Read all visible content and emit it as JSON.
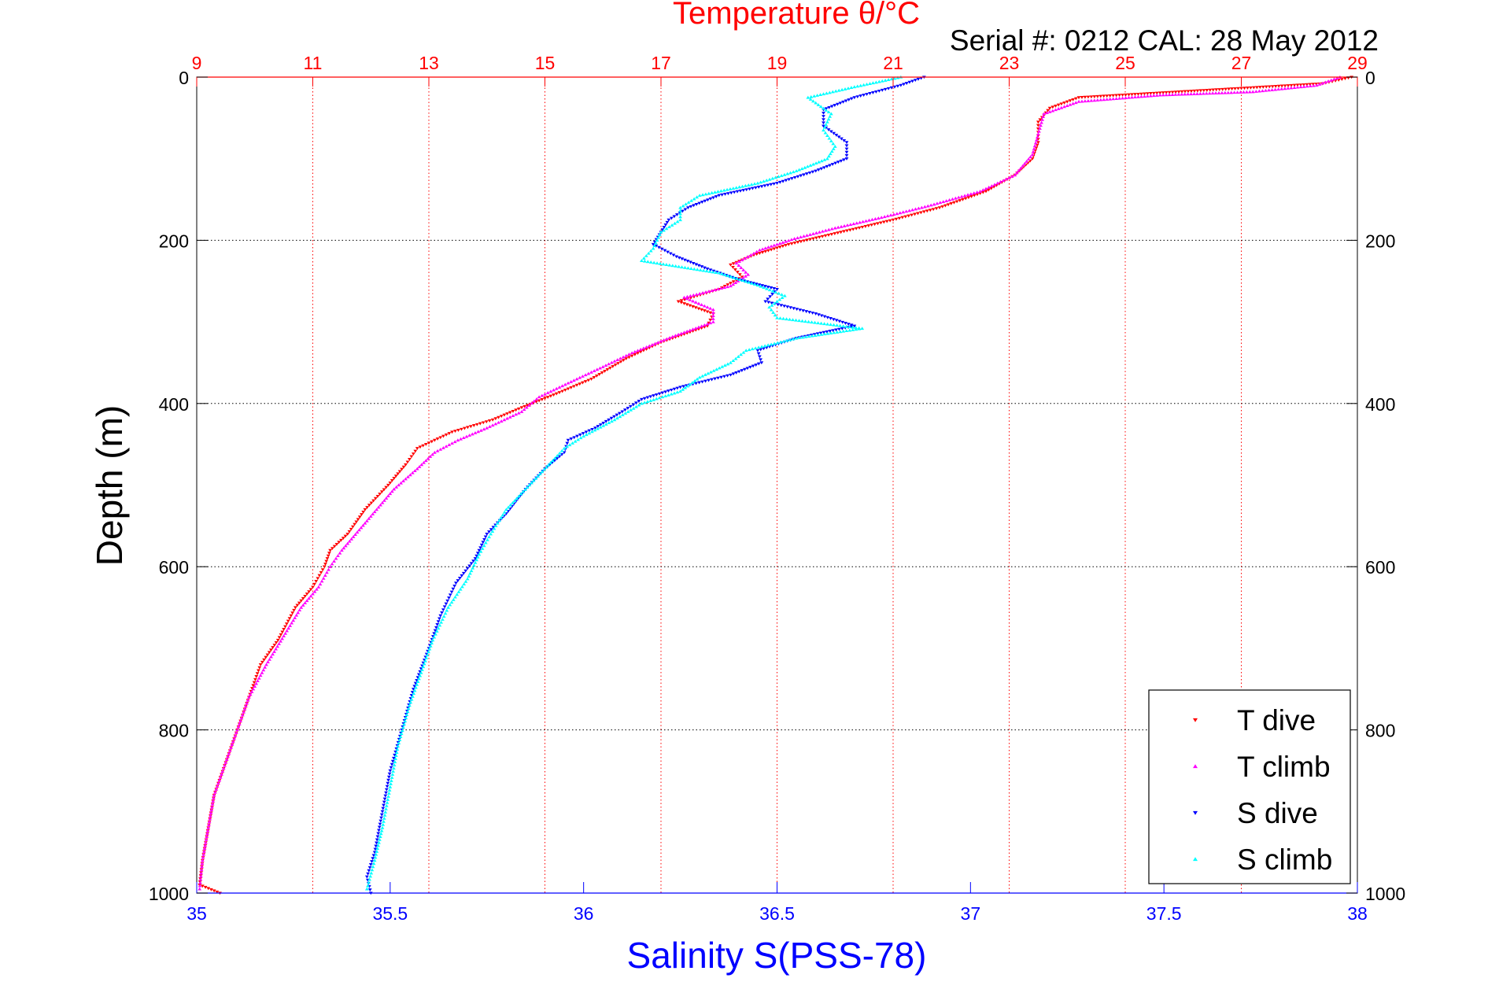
{
  "chart_data": {
    "type": "scatter",
    "title": "Temperature θ/°C",
    "subtitle": "Serial #: 0212  CAL: 28 May 2012",
    "xlabel": "Salinity S(PSS-78)",
    "ylabel": "Depth (m)",
    "x_bottom": {
      "label": "Salinity S(PSS-78)",
      "range": [
        35,
        38
      ],
      "ticks": [
        35,
        35.5,
        36,
        36.5,
        37,
        37.5,
        38
      ],
      "color": "#0000ff"
    },
    "x_top": {
      "label": "Temperature θ/°C",
      "range": [
        9,
        29
      ],
      "ticks": [
        9,
        11,
        13,
        15,
        17,
        19,
        21,
        23,
        25,
        27,
        29
      ],
      "color": "#ff0000"
    },
    "y": {
      "label": "Depth (m)",
      "range": [
        0,
        1000
      ],
      "reversed": true,
      "ticks": [
        0,
        200,
        400,
        600,
        800,
        1000
      ]
    },
    "grid": true,
    "legend_position": "bottom-right",
    "series": [
      {
        "name": "T dive",
        "axis": "temperature",
        "color": "#ff0000",
        "marker": "triangle-down",
        "points": [
          [
            28.9,
            0
          ],
          [
            28.4,
            8
          ],
          [
            24.2,
            25
          ],
          [
            23.7,
            38
          ],
          [
            23.5,
            55
          ],
          [
            23.5,
            80
          ],
          [
            23.4,
            100
          ],
          [
            23.1,
            120
          ],
          [
            22.6,
            140
          ],
          [
            21.8,
            160
          ],
          [
            21.0,
            175
          ],
          [
            20.1,
            190
          ],
          [
            19.2,
            205
          ],
          [
            18.6,
            218
          ],
          [
            18.2,
            230
          ],
          [
            18.4,
            245
          ],
          [
            18.0,
            260
          ],
          [
            17.3,
            275
          ],
          [
            17.9,
            290
          ],
          [
            17.8,
            305
          ],
          [
            17.0,
            325
          ],
          [
            16.4,
            345
          ],
          [
            15.8,
            370
          ],
          [
            15.2,
            388
          ],
          [
            14.6,
            405
          ],
          [
            14.1,
            420
          ],
          [
            13.4,
            435
          ],
          [
            12.8,
            455
          ],
          [
            12.6,
            475
          ],
          [
            12.3,
            500
          ],
          [
            11.9,
            530
          ],
          [
            11.6,
            560
          ],
          [
            11.3,
            580
          ],
          [
            11.2,
            600
          ],
          [
            11.0,
            625
          ],
          [
            10.7,
            650
          ],
          [
            10.4,
            690
          ],
          [
            10.1,
            720
          ],
          [
            9.9,
            760
          ],
          [
            9.7,
            800
          ],
          [
            9.5,
            840
          ],
          [
            9.3,
            880
          ],
          [
            9.2,
            920
          ],
          [
            9.1,
            960
          ],
          [
            9.05,
            990
          ],
          [
            9.4,
            1000
          ]
        ]
      },
      {
        "name": "T climb",
        "axis": "temperature",
        "color": "#ff00ff",
        "marker": "triangle-up",
        "points": [
          [
            28.7,
            0
          ],
          [
            28.3,
            10
          ],
          [
            27.2,
            18
          ],
          [
            25.6,
            22
          ],
          [
            24.2,
            30
          ],
          [
            23.6,
            45
          ],
          [
            23.5,
            70
          ],
          [
            23.4,
            95
          ],
          [
            23.1,
            120
          ],
          [
            22.5,
            140
          ],
          [
            21.6,
            158
          ],
          [
            20.8,
            172
          ],
          [
            20.0,
            185
          ],
          [
            19.3,
            198
          ],
          [
            18.7,
            212
          ],
          [
            18.3,
            228
          ],
          [
            18.5,
            242
          ],
          [
            18.2,
            256
          ],
          [
            17.4,
            270
          ],
          [
            17.9,
            285
          ],
          [
            17.9,
            300
          ],
          [
            17.2,
            318
          ],
          [
            16.5,
            338
          ],
          [
            16.0,
            355
          ],
          [
            15.4,
            375
          ],
          [
            14.9,
            392
          ],
          [
            14.6,
            410
          ],
          [
            14.0,
            430
          ],
          [
            13.5,
            445
          ],
          [
            13.1,
            460
          ],
          [
            12.8,
            480
          ],
          [
            12.4,
            505
          ],
          [
            12.1,
            530
          ],
          [
            11.8,
            555
          ],
          [
            11.5,
            580
          ],
          [
            11.3,
            600
          ],
          [
            11.1,
            625
          ],
          [
            10.8,
            650
          ],
          [
            10.5,
            685
          ],
          [
            10.2,
            720
          ],
          [
            9.9,
            760
          ],
          [
            9.7,
            800
          ],
          [
            9.5,
            840
          ],
          [
            9.3,
            880
          ],
          [
            9.2,
            920
          ],
          [
            9.1,
            960
          ],
          [
            9.05,
            995
          ]
        ]
      },
      {
        "name": "S dive",
        "axis": "salinity",
        "color": "#0000ff",
        "marker": "triangle-down",
        "points": [
          [
            36.88,
            0
          ],
          [
            36.82,
            10
          ],
          [
            36.7,
            25
          ],
          [
            36.62,
            40
          ],
          [
            36.62,
            60
          ],
          [
            36.68,
            80
          ],
          [
            36.68,
            100
          ],
          [
            36.6,
            115
          ],
          [
            36.5,
            130
          ],
          [
            36.35,
            145
          ],
          [
            36.27,
            160
          ],
          [
            36.22,
            175
          ],
          [
            36.2,
            190
          ],
          [
            36.18,
            205
          ],
          [
            36.24,
            220
          ],
          [
            36.32,
            235
          ],
          [
            36.4,
            248
          ],
          [
            36.5,
            260
          ],
          [
            36.47,
            275
          ],
          [
            36.6,
            290
          ],
          [
            36.7,
            305
          ],
          [
            36.55,
            320
          ],
          [
            36.45,
            335
          ],
          [
            36.46,
            350
          ],
          [
            36.38,
            365
          ],
          [
            36.25,
            380
          ],
          [
            36.15,
            395
          ],
          [
            36.1,
            410
          ],
          [
            36.03,
            430
          ],
          [
            35.96,
            445
          ],
          [
            35.95,
            460
          ],
          [
            35.9,
            480
          ],
          [
            35.85,
            505
          ],
          [
            35.8,
            535
          ],
          [
            35.75,
            560
          ],
          [
            35.72,
            590
          ],
          [
            35.67,
            620
          ],
          [
            35.63,
            660
          ],
          [
            35.6,
            700
          ],
          [
            35.56,
            750
          ],
          [
            35.53,
            800
          ],
          [
            35.5,
            850
          ],
          [
            35.48,
            900
          ],
          [
            35.46,
            950
          ],
          [
            35.44,
            980
          ],
          [
            35.45,
            1000
          ]
        ]
      },
      {
        "name": "S climb",
        "axis": "salinity",
        "color": "#00ffff",
        "marker": "triangle-up",
        "points": [
          [
            36.82,
            0
          ],
          [
            36.7,
            12
          ],
          [
            36.58,
            25
          ],
          [
            36.64,
            45
          ],
          [
            36.62,
            65
          ],
          [
            36.65,
            85
          ],
          [
            36.63,
            100
          ],
          [
            36.55,
            115
          ],
          [
            36.45,
            130
          ],
          [
            36.3,
            145
          ],
          [
            36.25,
            160
          ],
          [
            36.25,
            175
          ],
          [
            36.2,
            190
          ],
          [
            36.18,
            210
          ],
          [
            36.15,
            225
          ],
          [
            36.35,
            240
          ],
          [
            36.45,
            255
          ],
          [
            36.52,
            268
          ],
          [
            36.48,
            282
          ],
          [
            36.5,
            295
          ],
          [
            36.72,
            308
          ],
          [
            36.55,
            320
          ],
          [
            36.42,
            335
          ],
          [
            36.38,
            350
          ],
          [
            36.3,
            368
          ],
          [
            36.25,
            385
          ],
          [
            36.15,
            400
          ],
          [
            36.08,
            420
          ],
          [
            36.0,
            440
          ],
          [
            35.95,
            455
          ],
          [
            35.92,
            470
          ],
          [
            35.86,
            500
          ],
          [
            35.8,
            530
          ],
          [
            35.76,
            560
          ],
          [
            35.73,
            585
          ],
          [
            35.7,
            615
          ],
          [
            35.65,
            650
          ],
          [
            35.61,
            690
          ],
          [
            35.58,
            730
          ],
          [
            35.55,
            770
          ],
          [
            35.52,
            820
          ],
          [
            35.5,
            870
          ],
          [
            35.48,
            920
          ],
          [
            35.46,
            960
          ],
          [
            35.44,
            995
          ]
        ]
      }
    ]
  }
}
